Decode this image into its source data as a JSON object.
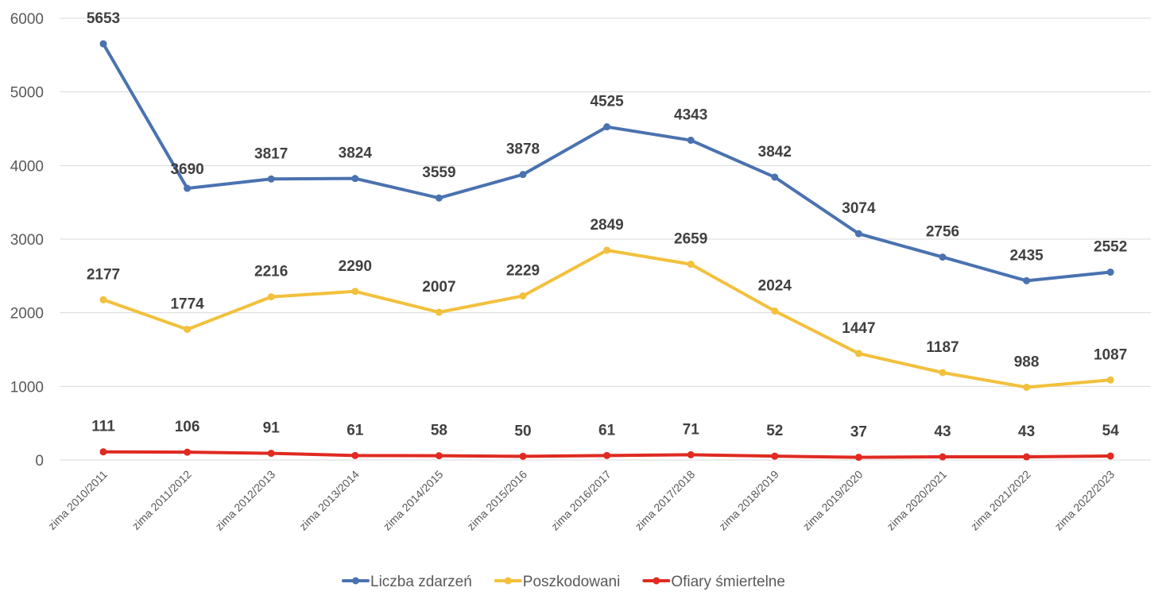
{
  "chart_data": {
    "type": "line",
    "title": "",
    "xlabel": "",
    "ylabel": "",
    "ylim": [
      0,
      6000
    ],
    "yticks": [
      0,
      1000,
      2000,
      3000,
      4000,
      5000,
      6000
    ],
    "grid": true,
    "legend_position": "bottom",
    "categories": [
      "zima 2010/2011",
      "zima 2011/2012",
      "zima 2012/2013",
      "zima 2013/2014",
      "zima 2014/2015",
      "zima 2015/2016",
      "zima 2016/2017",
      "zima 2017/2018",
      "zima 2018/2019",
      "zima 2019/2020",
      "zima 2020/2021",
      "zima 2021/2022",
      "zima 2022/2023"
    ],
    "series": [
      {
        "name": "Liczba zdarzeń",
        "color": "#4a72b0",
        "values": [
          5653,
          3690,
          3817,
          3824,
          3559,
          3878,
          4525,
          4343,
          3842,
          3074,
          2756,
          2435,
          2552
        ]
      },
      {
        "name": "Poszkodowani",
        "color": "#f2c03c",
        "values": [
          2177,
          1774,
          2216,
          2290,
          2007,
          2229,
          2849,
          2659,
          2024,
          1447,
          1187,
          988,
          1087
        ]
      },
      {
        "name": "Ofiary śmiertelne",
        "color": "#e02a22",
        "values": [
          111,
          106,
          91,
          61,
          58,
          50,
          61,
          71,
          52,
          37,
          43,
          43,
          54
        ]
      }
    ]
  }
}
